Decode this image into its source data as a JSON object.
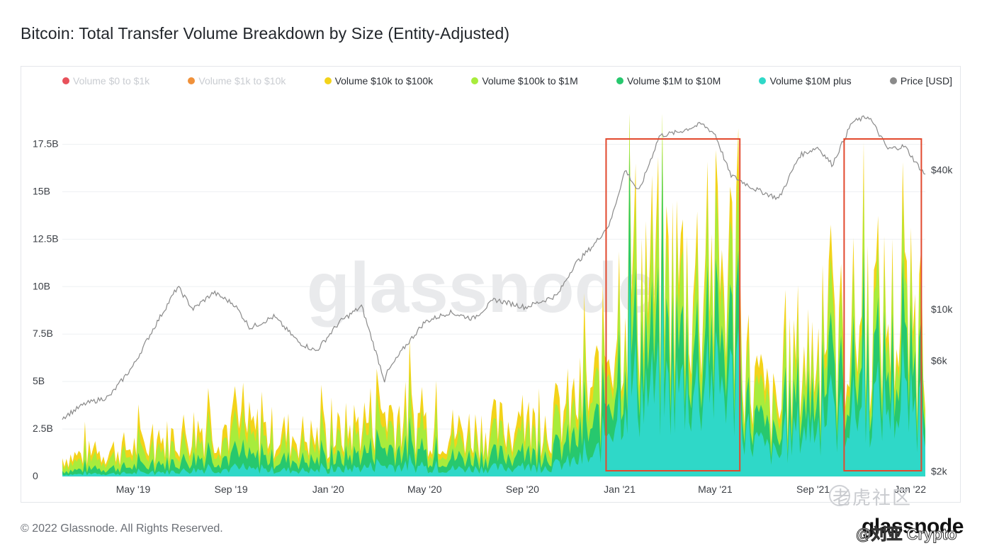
{
  "title": "Bitcoin: Total Transfer Volume Breakdown by Size (Entity-Adjusted)",
  "footer": "© 2022 Glassnode. All Rights Reserved.",
  "brand": "glassnode",
  "watermark_center": "glassnode",
  "corner_watermark": "老虎社区",
  "corner_user": "@刘亚 Crypto",
  "colors": {
    "background": "#ffffff",
    "grid": "#eef0f3",
    "price_line": "#8a8a8a",
    "highlight_box": "#e2492e"
  },
  "legend": [
    {
      "label": "Volume $0 to $1k",
      "color": "#e8515b",
      "active": false
    },
    {
      "label": "Volume $1k to $10k",
      "color": "#f0913a",
      "active": false
    },
    {
      "label": "Volume $10k to $100k",
      "color": "#f3d31a",
      "active": true
    },
    {
      "label": "Volume $100k to $1M",
      "color": "#a8ec3c",
      "active": true
    },
    {
      "label": "Volume $1M to $10M",
      "color": "#27c86e",
      "active": true
    },
    {
      "label": "Volume $10M plus",
      "color": "#2fd8c8",
      "active": true
    },
    {
      "label": "Price [USD]",
      "color": "#8a8a8a",
      "active": true
    }
  ],
  "chart_data": {
    "type": "area",
    "title": "Bitcoin: Total Transfer Volume Breakdown by Size (Entity-Adjusted)",
    "x_range": [
      "2019-02-01",
      "2022-01-20"
    ],
    "x_ticks": [
      "May '19",
      "Sep '19",
      "Jan '20",
      "May '20",
      "Sep '20",
      "Jan '21",
      "May '21",
      "Sep '21",
      "Jan '22"
    ],
    "y_left": {
      "ticks": [
        "0",
        "2.5B",
        "5B",
        "7.5B",
        "10B",
        "12.5B",
        "15B",
        "17.5B"
      ],
      "range": [
        0,
        19500000000
      ]
    },
    "y_right": {
      "scale": "log",
      "ticks": [
        "$2k",
        "$6k",
        "$10k",
        "$40k"
      ]
    },
    "grid": true,
    "legend_position": "top",
    "series": [
      {
        "name": "Volume $10M plus",
        "unit": "USD",
        "points": [
          [
            "2019-02-01",
            0.1
          ],
          [
            "2019-06-01",
            0.2
          ],
          [
            "2019-08-01",
            0.4
          ],
          [
            "2020-01-01",
            0.3
          ],
          [
            "2020-03-12",
            0.6
          ],
          [
            "2020-06-01",
            0.4
          ],
          [
            "2020-10-01",
            0.5
          ],
          [
            "2020-12-01",
            1.0
          ],
          [
            "2020-12-20",
            3.0
          ],
          [
            "2021-01-10",
            5.0
          ],
          [
            "2021-02-10",
            4.5
          ],
          [
            "2021-04-15",
            4.8
          ],
          [
            "2021-05-20",
            5.0
          ],
          [
            "2021-06-15",
            2.0
          ],
          [
            "2021-07-20",
            1.0
          ],
          [
            "2021-08-10",
            2.5
          ],
          [
            "2021-10-01",
            3.0
          ],
          [
            "2021-11-15",
            4.0
          ],
          [
            "2022-01-20",
            3.5
          ]
        ]
      },
      {
        "name": "Volume $1M to $10M",
        "unit": "USD",
        "points": [
          [
            "2019-02-01",
            0.2
          ],
          [
            "2019-06-01",
            0.4
          ],
          [
            "2019-08-01",
            0.7
          ],
          [
            "2020-01-01",
            0.5
          ],
          [
            "2020-03-12",
            1.0
          ],
          [
            "2020-06-01",
            0.6
          ],
          [
            "2020-10-01",
            0.7
          ],
          [
            "2020-12-01",
            1.5
          ],
          [
            "2020-12-20",
            2.0
          ],
          [
            "2021-01-10",
            2.6
          ],
          [
            "2021-02-10",
            2.5
          ],
          [
            "2021-04-15",
            2.4
          ],
          [
            "2021-05-20",
            2.5
          ],
          [
            "2021-06-15",
            1.2
          ],
          [
            "2021-07-20",
            0.7
          ],
          [
            "2021-08-10",
            1.6
          ],
          [
            "2021-10-01",
            1.8
          ],
          [
            "2021-11-15",
            2.2
          ],
          [
            "2022-01-20",
            2.0
          ]
        ]
      },
      {
        "name": "Volume $100k to $1M",
        "unit": "USD",
        "points": [
          [
            "2019-02-01",
            0.4
          ],
          [
            "2019-06-01",
            0.7
          ],
          [
            "2019-08-01",
            1.0
          ],
          [
            "2020-01-01",
            0.7
          ],
          [
            "2020-03-12",
            1.2
          ],
          [
            "2020-06-01",
            0.8
          ],
          [
            "2020-10-01",
            1.0
          ],
          [
            "2020-12-01",
            1.3
          ],
          [
            "2020-12-20",
            2.0
          ],
          [
            "2021-01-10",
            2.4
          ],
          [
            "2021-02-10",
            2.4
          ],
          [
            "2021-04-15",
            2.3
          ],
          [
            "2021-05-20",
            2.5
          ],
          [
            "2021-06-15",
            1.3
          ],
          [
            "2021-07-20",
            0.9
          ],
          [
            "2021-08-10",
            1.5
          ],
          [
            "2021-10-01",
            1.6
          ],
          [
            "2021-11-15",
            1.8
          ],
          [
            "2022-01-20",
            1.6
          ]
        ]
      },
      {
        "name": "Volume $10k to $100k",
        "unit": "USD",
        "points": [
          [
            "2019-02-01",
            0.3
          ],
          [
            "2019-06-01",
            0.5
          ],
          [
            "2019-08-01",
            0.7
          ],
          [
            "2020-01-01",
            0.5
          ],
          [
            "2020-03-12",
            0.8
          ],
          [
            "2020-06-01",
            0.6
          ],
          [
            "2020-10-01",
            0.7
          ],
          [
            "2020-12-01",
            0.8
          ],
          [
            "2020-12-20",
            1.0
          ],
          [
            "2021-01-10",
            1.3
          ],
          [
            "2021-02-10",
            1.3
          ],
          [
            "2021-04-15",
            1.2
          ],
          [
            "2021-05-20",
            1.3
          ],
          [
            "2021-06-15",
            0.8
          ],
          [
            "2021-07-20",
            0.6
          ],
          [
            "2021-08-10",
            0.9
          ],
          [
            "2021-10-01",
            0.9
          ],
          [
            "2021-11-15",
            1.0
          ],
          [
            "2022-01-20",
            0.9
          ]
        ]
      },
      {
        "name": "Price [USD]",
        "unit": "USD",
        "points": [
          [
            "2019-02-01",
            3400
          ],
          [
            "2019-03-01",
            3900
          ],
          [
            "2019-04-01",
            4200
          ],
          [
            "2019-05-01",
            5700
          ],
          [
            "2019-05-25",
            8100
          ],
          [
            "2019-06-26",
            12500
          ],
          [
            "2019-07-15",
            10000
          ],
          [
            "2019-08-10",
            11800
          ],
          [
            "2019-09-05",
            10500
          ],
          [
            "2019-09-25",
            8300
          ],
          [
            "2019-10-25",
            9300
          ],
          [
            "2019-11-25",
            7200
          ],
          [
            "2019-12-17",
            6600
          ],
          [
            "2020-01-15",
            8800
          ],
          [
            "2020-02-12",
            10300
          ],
          [
            "2020-03-12",
            4900
          ],
          [
            "2020-03-13",
            5200
          ],
          [
            "2020-04-05",
            6800
          ],
          [
            "2020-05-01",
            8800
          ],
          [
            "2020-06-01",
            9700
          ],
          [
            "2020-07-01",
            9100
          ],
          [
            "2020-07-28",
            11000
          ],
          [
            "2020-09-05",
            10200
          ],
          [
            "2020-10-15",
            11500
          ],
          [
            "2020-11-05",
            15500
          ],
          [
            "2020-12-01",
            19200
          ],
          [
            "2020-12-20",
            23500
          ],
          [
            "2021-01-08",
            40000
          ],
          [
            "2021-01-25",
            32000
          ],
          [
            "2021-02-20",
            56000
          ],
          [
            "2021-03-15",
            58000
          ],
          [
            "2021-04-14",
            63000
          ],
          [
            "2021-05-01",
            57000
          ],
          [
            "2021-05-20",
            38000
          ],
          [
            "2021-06-20",
            33000
          ],
          [
            "2021-07-20",
            30000
          ],
          [
            "2021-08-15",
            46000
          ],
          [
            "2021-09-07",
            50000
          ],
          [
            "2021-09-25",
            42000
          ],
          [
            "2021-10-20",
            64000
          ],
          [
            "2021-11-10",
            68000
          ],
          [
            "2021-12-04",
            49000
          ],
          [
            "2021-12-25",
            50500
          ],
          [
            "2022-01-10",
            42000
          ],
          [
            "2022-01-20",
            38000
          ]
        ]
      }
    ],
    "annotations": [
      {
        "type": "box",
        "label": "",
        "from": "2020-12-15",
        "to": "2021-06-01"
      },
      {
        "type": "box",
        "label": "",
        "from": "2021-10-10",
        "to": "2022-01-15"
      }
    ]
  }
}
